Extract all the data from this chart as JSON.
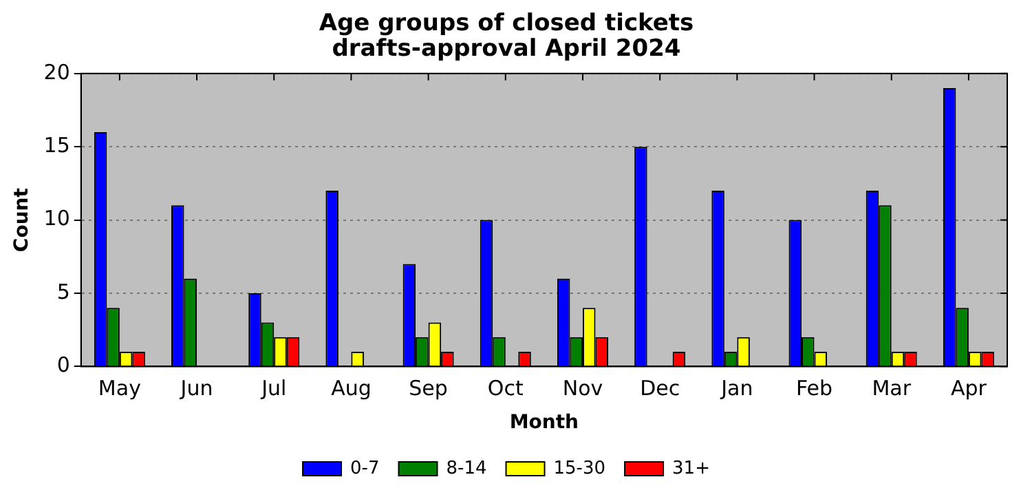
{
  "chart_data": {
    "type": "bar",
    "title": "Age groups of closed tickets\ndrafts-approval April 2024",
    "xlabel": "Month",
    "ylabel": "Count",
    "categories": [
      "May",
      "Jun",
      "Jul",
      "Aug",
      "Sep",
      "Oct",
      "Nov",
      "Dec",
      "Jan",
      "Feb",
      "Mar",
      "Apr"
    ],
    "series": [
      {
        "name": "0-7",
        "color": "#0000ff",
        "values": [
          16,
          11,
          5,
          12,
          7,
          10,
          6,
          15,
          12,
          10,
          12,
          19
        ]
      },
      {
        "name": "8-14",
        "color": "#008000",
        "values": [
          4,
          6,
          3,
          0,
          2,
          2,
          2,
          0,
          1,
          2,
          11,
          4
        ]
      },
      {
        "name": "15-30",
        "color": "#ffff00",
        "values": [
          1,
          0,
          2,
          1,
          3,
          0,
          4,
          0,
          2,
          1,
          1,
          1
        ]
      },
      {
        "name": "31+",
        "color": "#ff0000",
        "values": [
          1,
          0,
          2,
          0,
          1,
          1,
          2,
          1,
          0,
          0,
          1,
          1
        ]
      }
    ],
    "ylim": [
      0,
      20
    ],
    "yticks": [
      0,
      5,
      10,
      15,
      20
    ],
    "grid": "y",
    "legend": "bottom"
  }
}
